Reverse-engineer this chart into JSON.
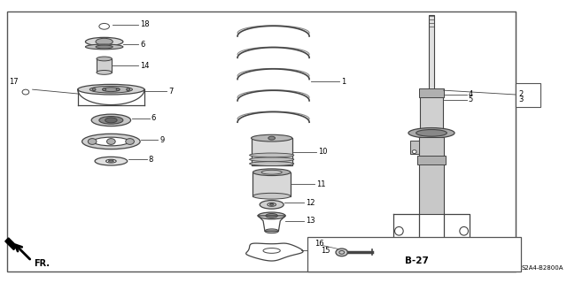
{
  "bg_color": "#ffffff",
  "border_color": "#666666",
  "line_color": "#444444",
  "text_color": "#000000",
  "diagram_code": "S2A4-B2800A",
  "page_ref": "B-27"
}
